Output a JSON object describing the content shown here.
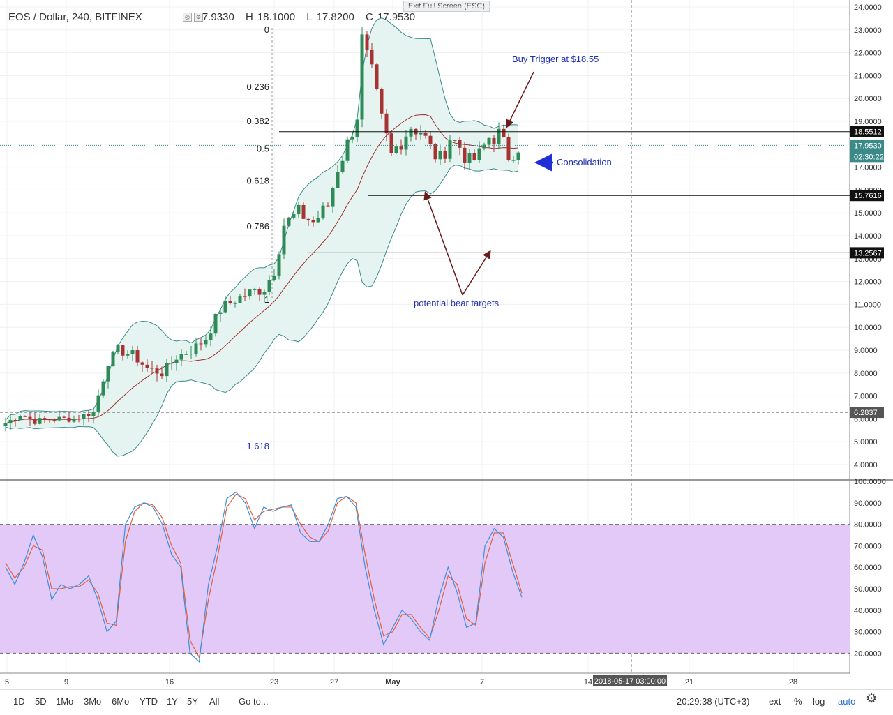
{
  "header": {
    "symbol": "EOS / Dollar, 240, BITFINEX",
    "o_label": "O",
    "o": "17.9330",
    "h_label": "H",
    "h": "18.1000",
    "l_label": "L",
    "l": "17.8200",
    "c_label": "C",
    "c": "17.9530",
    "exit_full_screen": "Exit Full Screen (ESC)"
  },
  "price_axis": [
    "24.0000",
    "23.0000",
    "22.0000",
    "21.0000",
    "20.0000",
    "19.0000",
    "18.0000",
    "17.0000",
    "16.0000",
    "15.0000",
    "14.0000",
    "13.0000",
    "12.0000",
    "11.0000",
    "10.0000",
    "9.0000",
    "8.0000",
    "7.0000",
    "6.0000",
    "5.0000",
    "4.0000"
  ],
  "osc_axis": [
    "100.0000",
    "90.0000",
    "80.0000",
    "70.0000",
    "60.0000",
    "50.0000",
    "40.0000",
    "30.0000",
    "20.0000"
  ],
  "date_axis": [
    "5",
    "9",
    "16",
    "23",
    "27",
    "May",
    "7",
    "14",
    "21",
    "28"
  ],
  "crosshair_date": "2018-05-17 03:00:00",
  "price_labels": {
    "trigger": "18.5512",
    "current": "17.9530",
    "countdown": "02:30:22",
    "target1": "15.7616",
    "target2": "13.2567",
    "crosshair": "6.2837"
  },
  "fib_levels": [
    {
      "label": "0",
      "value": 23.0
    },
    {
      "label": "0.236",
      "value": 20.5
    },
    {
      "label": "0.382",
      "value": 19.0
    },
    {
      "label": "0.5",
      "value": 17.8
    },
    {
      "label": "0.618",
      "value": 16.4
    },
    {
      "label": "0.786",
      "value": 14.4
    },
    {
      "label": "1",
      "value": 11.2
    },
    {
      "label": "1.618",
      "value": 4.8
    }
  ],
  "annotations": {
    "buy_trigger": "Buy Trigger at $18.55",
    "consolidation": "Consolidation",
    "bear_targets": "potential bear targets"
  },
  "colors": {
    "candle_up": "#2e8b57",
    "candle_down": "#a83232",
    "band_fill": "#e6f4f1",
    "band_line": "#3a8a8a",
    "basis_line": "#a03030",
    "osc_band": "#e3c9f7",
    "k_line": "#3d8fd9",
    "d_line": "#e0603a",
    "annotation_text": "#1f2fb5",
    "arrow": "#6b1a1a",
    "level_line": "#111111"
  },
  "timeframes": [
    "1D",
    "5D",
    "1Mo",
    "3Mo",
    "6Mo",
    "YTD",
    "1Y",
    "5Y",
    "All"
  ],
  "goto_label": "Go to...",
  "clock": "20:29:38 (UTC+3)",
  "bottom_controls": {
    "ext": "ext",
    "pct": "%",
    "log": "log",
    "auto": "auto"
  },
  "chart_data": {
    "type": "line",
    "title": "EOS / Dollar, 240, BITFINEX",
    "ylim": [
      4,
      24
    ],
    "main_series": [
      {
        "x": 0,
        "y": 5.8
      },
      {
        "x": 3,
        "y": 6.2
      },
      {
        "x": 6,
        "y": 5.9
      },
      {
        "x": 10,
        "y": 6.0
      },
      {
        "x": 14,
        "y": 6.0
      },
      {
        "x": 18,
        "y": 6.3
      },
      {
        "x": 21,
        "y": 8.5
      },
      {
        "x": 23,
        "y": 9.0
      },
      {
        "x": 26,
        "y": 8.8
      },
      {
        "x": 29,
        "y": 8.2
      },
      {
        "x": 32,
        "y": 8.0
      },
      {
        "x": 35,
        "y": 8.7
      },
      {
        "x": 38,
        "y": 9.0
      },
      {
        "x": 41,
        "y": 9.5
      },
      {
        "x": 44,
        "y": 10.8
      },
      {
        "x": 47,
        "y": 11.2
      },
      {
        "x": 50,
        "y": 11.5
      },
      {
        "x": 53,
        "y": 11.7
      },
      {
        "x": 55,
        "y": 12.5
      },
      {
        "x": 57,
        "y": 14.5
      },
      {
        "x": 60,
        "y": 15.0
      },
      {
        "x": 63,
        "y": 14.6
      },
      {
        "x": 66,
        "y": 15.3
      },
      {
        "x": 68,
        "y": 17.0
      },
      {
        "x": 70,
        "y": 18.0
      },
      {
        "x": 72,
        "y": 19.3
      },
      {
        "x": 73,
        "y": 22.5
      },
      {
        "x": 75,
        "y": 21.0
      },
      {
        "x": 77,
        "y": 19.0
      },
      {
        "x": 79,
        "y": 17.5
      },
      {
        "x": 81,
        "y": 18.2
      },
      {
        "x": 83,
        "y": 18.8
      },
      {
        "x": 85,
        "y": 18.6
      },
      {
        "x": 87,
        "y": 17.8
      },
      {
        "x": 89,
        "y": 17.3
      },
      {
        "x": 91,
        "y": 18.3
      },
      {
        "x": 93,
        "y": 17.9
      },
      {
        "x": 95,
        "y": 17.2
      },
      {
        "x": 97,
        "y": 17.5
      },
      {
        "x": 99,
        "y": 18.3
      },
      {
        "x": 101,
        "y": 18.4
      },
      {
        "x": 103,
        "y": 17.5
      },
      {
        "x": 105,
        "y": 17.95
      }
    ],
    "oscillator": {
      "ylim": [
        15,
        100
      ],
      "upper_band": 80,
      "lower_band": 20,
      "k": [
        60,
        52,
        62,
        75,
        65,
        45,
        52,
        50,
        52,
        56,
        45,
        30,
        35,
        80,
        88,
        90,
        88,
        80,
        66,
        60,
        20,
        16,
        52,
        70,
        92,
        95,
        90,
        78,
        88,
        86,
        88,
        89,
        76,
        72,
        72,
        80,
        92,
        93,
        88,
        60,
        40,
        24,
        32,
        40,
        36,
        30,
        26,
        46,
        60,
        48,
        32,
        34,
        70,
        78,
        74,
        58,
        46
      ],
      "d": [
        62,
        55,
        60,
        70,
        68,
        50,
        50,
        51,
        51,
        54,
        48,
        34,
        33,
        72,
        86,
        90,
        89,
        83,
        70,
        62,
        26,
        18,
        45,
        65,
        88,
        94,
        92,
        82,
        86,
        87,
        88,
        88,
        80,
        74,
        72,
        77,
        90,
        93,
        90,
        66,
        45,
        28,
        30,
        38,
        38,
        32,
        27,
        40,
        56,
        52,
        36,
        33,
        62,
        76,
        76,
        62,
        48
      ]
    }
  }
}
